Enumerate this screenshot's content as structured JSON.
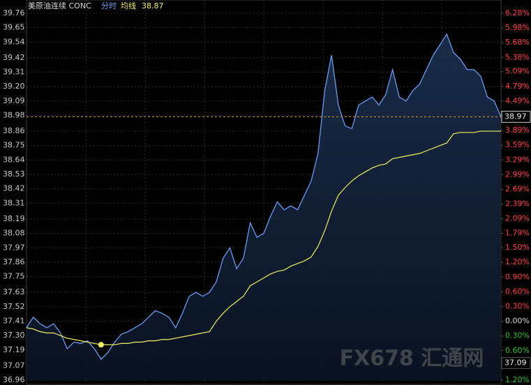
{
  "chart_data": {
    "type": "line",
    "title": "美原油连续 CONC",
    "avg_value": 38.87,
    "current_value": 38.97,
    "low_value": 37.09,
    "watermark": "FX678 汇通网",
    "series": [
      {
        "name": "分时",
        "color": "#6a9cf0",
        "values": [
          37.36,
          37.44,
          37.39,
          37.36,
          37.39,
          37.32,
          37.2,
          37.25,
          37.24,
          37.26,
          37.2,
          37.12,
          37.17,
          37.25,
          37.31,
          37.33,
          37.36,
          37.39,
          37.44,
          37.49,
          37.47,
          37.44,
          37.36,
          37.47,
          37.6,
          37.63,
          37.6,
          37.63,
          37.71,
          37.89,
          37.97,
          37.81,
          37.89,
          38.16,
          38.05,
          38.08,
          38.21,
          38.32,
          38.26,
          38.29,
          38.26,
          38.37,
          38.48,
          38.69,
          39.17,
          39.44,
          39.06,
          38.9,
          38.88,
          39.06,
          39.09,
          39.12,
          39.06,
          39.14,
          39.33,
          39.12,
          39.09,
          39.17,
          39.22,
          39.33,
          39.44,
          39.52,
          39.6,
          39.46,
          39.41,
          39.33,
          39.33,
          39.28,
          39.12,
          39.09,
          38.97
        ]
      },
      {
        "name": "均线",
        "color": "#f0f060",
        "values": [
          37.36,
          37.35,
          37.33,
          37.32,
          37.32,
          37.3,
          37.28,
          37.27,
          37.26,
          37.25,
          37.24,
          37.23,
          37.23,
          37.23,
          37.24,
          37.24,
          37.25,
          37.25,
          37.26,
          37.26,
          37.27,
          37.27,
          37.28,
          37.29,
          37.3,
          37.31,
          37.32,
          37.33,
          37.41,
          37.47,
          37.52,
          37.56,
          37.6,
          37.68,
          37.71,
          37.74,
          37.77,
          37.79,
          37.8,
          37.83,
          37.85,
          37.87,
          37.9,
          37.98,
          38.1,
          38.25,
          38.37,
          38.43,
          38.48,
          38.52,
          38.55,
          38.58,
          38.6,
          38.61,
          38.65,
          38.66,
          38.67,
          38.68,
          38.69,
          38.71,
          38.73,
          38.75,
          38.77,
          38.84,
          38.85,
          38.85,
          38.85,
          38.86,
          38.86,
          38.86,
          38.86
        ]
      }
    ],
    "ylim": [
      36.96,
      39.76
    ],
    "yticks": [
      39.76,
      39.65,
      39.54,
      39.42,
      39.31,
      {
        "value": 39.2,
        "label": "39.20"
      },
      39.09,
      38.98,
      38.86,
      38.75,
      38.64,
      38.53,
      38.42,
      38.31,
      38.19,
      38.08,
      37.97,
      37.86,
      37.75,
      37.63,
      37.52,
      37.41,
      {
        "value": 37.3,
        "label": "37.30"
      },
      37.19,
      37.07,
      36.96
    ],
    "y2lim": [
      -1.2,
      6.28
    ],
    "y2ticks": [
      {
        "value": 6.28,
        "label": "6.28%"
      },
      {
        "value": 5.98,
        "label": "5.98%"
      },
      {
        "value": 5.68,
        "label": "5.68%"
      },
      {
        "value": 5.38,
        "label": "5.38%"
      },
      {
        "value": 5.09,
        "label": "5.09%"
      },
      {
        "value": 4.79,
        "label": "4.79%"
      },
      {
        "value": 4.49,
        "label": "4.49%"
      },
      {
        "value": 4.19,
        "label": "4.19%"
      },
      {
        "value": 3.89,
        "label": "3.89%"
      },
      {
        "value": 3.59,
        "label": "3.59%"
      },
      {
        "value": 3.29,
        "label": "3.29%"
      },
      {
        "value": 2.99,
        "label": "2.99%"
      },
      {
        "value": 2.69,
        "label": "2.69%"
      },
      {
        "value": 2.39,
        "label": "2.39%"
      },
      {
        "value": 2.09,
        "label": "2.09%"
      },
      {
        "value": 1.79,
        "label": "1.79%"
      },
      {
        "value": 1.5,
        "label": "1.50%"
      },
      {
        "value": 1.2,
        "label": "1.20%"
      },
      {
        "value": 0.9,
        "label": "0.90%"
      },
      {
        "value": 0.6,
        "label": "0.60%"
      },
      {
        "value": 0.3,
        "label": "0.30%"
      },
      {
        "value": 0,
        "label": "0.00%"
      },
      {
        "value": -0.3,
        "label": "0.30%"
      },
      {
        "value": -0.6,
        "label": "0.60%"
      },
      {
        "value": -0.9,
        "label": "0.90%"
      },
      {
        "value": -1.2,
        "label": "1.20%"
      }
    ],
    "grid": true
  }
}
